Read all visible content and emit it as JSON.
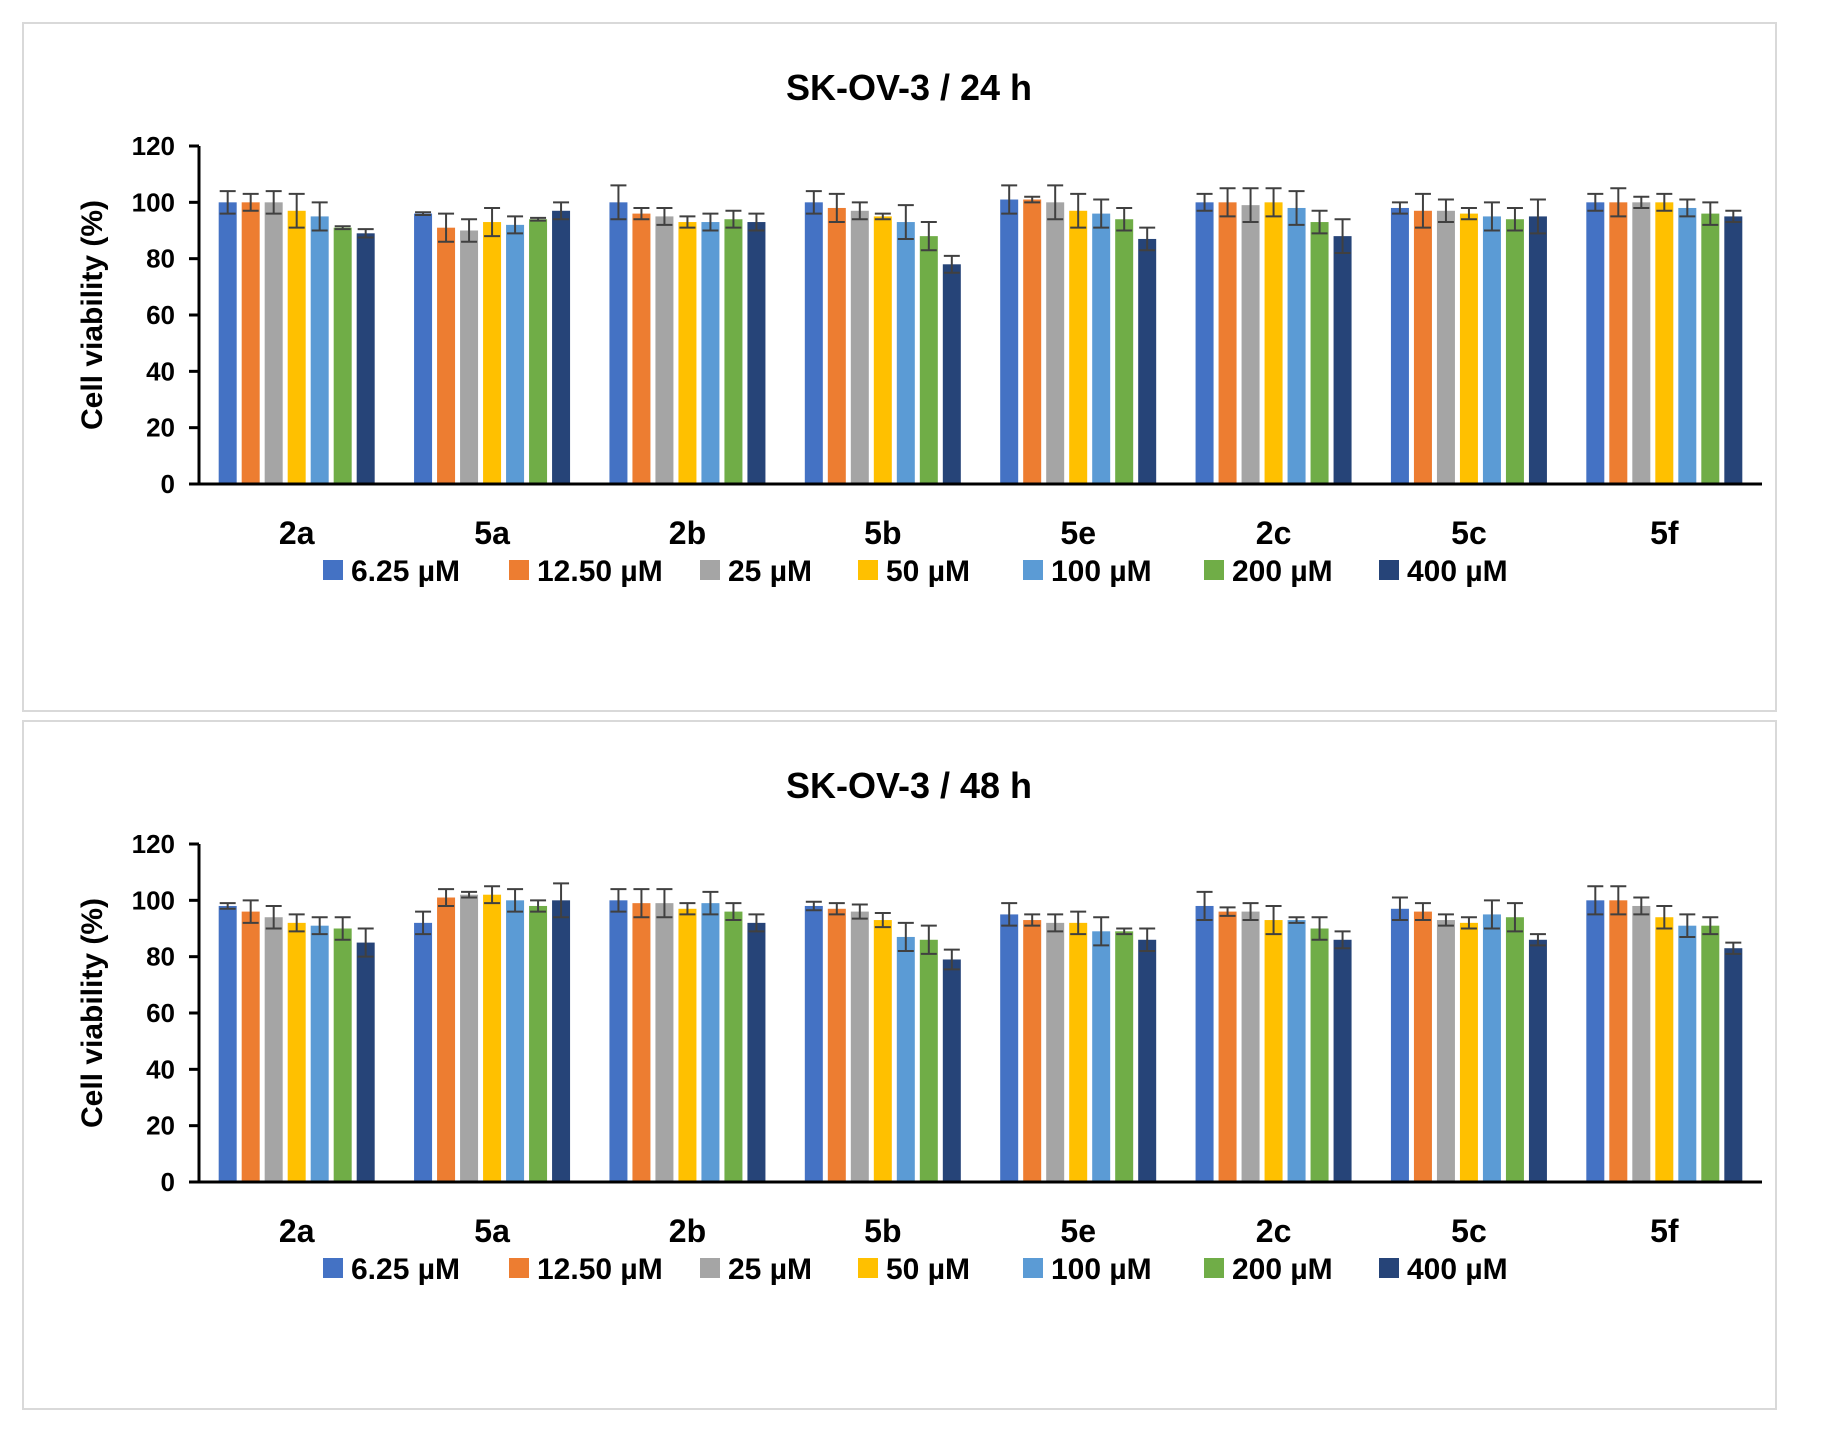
{
  "chart_data": [
    {
      "type": "bar",
      "title": "SK-OV-3 / 24 h",
      "xlabel": "",
      "ylabel": "Cell viability (%)",
      "ylim": [
        0,
        120
      ],
      "yticks": [
        0,
        20,
        40,
        60,
        80,
        100,
        120
      ],
      "legend_position": "bottom",
      "categories": [
        "2a",
        "5a",
        "2b",
        "5b",
        "5e",
        "2c",
        "5c",
        "5f"
      ],
      "series": [
        {
          "name": "6.25 µM",
          "color": "#4472C4",
          "values": [
            100,
            96,
            100,
            100,
            101,
            100,
            98,
            100
          ],
          "errors": [
            4,
            0.5,
            6,
            4,
            5,
            3,
            2,
            3
          ]
        },
        {
          "name": "12.50 µM",
          "color": "#ED7D31",
          "values": [
            100,
            91,
            96,
            98,
            101,
            100,
            97,
            100
          ],
          "errors": [
            3,
            5,
            2,
            5,
            1,
            5,
            6,
            5
          ]
        },
        {
          "name": "25 µM",
          "color": "#A5A5A5",
          "values": [
            100,
            90,
            95,
            97,
            100,
            99,
            97,
            100
          ],
          "errors": [
            4,
            4,
            3,
            3,
            6,
            6,
            4,
            2
          ]
        },
        {
          "name": "50 µM",
          "color": "#FFC000",
          "values": [
            97,
            93,
            93,
            95,
            97,
            100,
            96,
            100
          ],
          "errors": [
            6,
            5,
            2,
            1,
            6,
            5,
            2,
            3
          ]
        },
        {
          "name": "100 µM",
          "color": "#5B9BD5",
          "values": [
            95,
            92,
            93,
            93,
            96,
            98,
            95,
            98
          ],
          "errors": [
            5,
            3,
            3,
            6,
            5,
            6,
            5,
            3
          ]
        },
        {
          "name": "200 µM",
          "color": "#70AD47",
          "values": [
            91,
            94,
            94,
            88,
            94,
            93,
            94,
            96
          ],
          "errors": [
            0.5,
            0.5,
            3,
            5,
            4,
            4,
            4,
            4
          ]
        },
        {
          "name": "400 µM",
          "color": "#264478",
          "values": [
            89,
            97,
            93,
            78,
            87,
            88,
            95,
            95
          ],
          "errors": [
            1.5,
            3,
            3,
            3,
            4,
            6,
            6,
            2
          ]
        }
      ]
    },
    {
      "type": "bar",
      "title": "SK-OV-3 / 48 h",
      "xlabel": "",
      "ylabel": "Cell viability (%)",
      "ylim": [
        0,
        120
      ],
      "yticks": [
        0,
        20,
        40,
        60,
        80,
        100,
        120
      ],
      "legend_position": "bottom",
      "categories": [
        "2a",
        "5a",
        "2b",
        "5b",
        "5e",
        "2c",
        "5c",
        "5f"
      ],
      "series": [
        {
          "name": "6.25 µM",
          "color": "#4472C4",
          "values": [
            98,
            92,
            100,
            98,
            95,
            98,
            97,
            100
          ],
          "errors": [
            1,
            4,
            4,
            1.5,
            4,
            5,
            4,
            5
          ]
        },
        {
          "name": "12.50 µM",
          "color": "#ED7D31",
          "values": [
            96,
            101,
            99,
            97,
            93,
            96,
            96,
            100
          ],
          "errors": [
            4,
            3,
            5,
            2,
            2,
            1.5,
            3,
            5
          ]
        },
        {
          "name": "25 µM",
          "color": "#A5A5A5",
          "values": [
            94,
            102,
            99,
            96,
            92,
            96,
            93,
            98
          ],
          "errors": [
            4,
            1,
            5,
            2.5,
            3,
            3,
            2,
            3
          ]
        },
        {
          "name": "50 µM",
          "color": "#FFC000",
          "values": [
            92,
            102,
            97,
            93,
            92,
            93,
            92,
            94
          ],
          "errors": [
            3,
            3,
            2,
            2.5,
            4,
            5,
            2,
            4
          ]
        },
        {
          "name": "100 µM",
          "color": "#5B9BD5",
          "values": [
            91,
            100,
            99,
            87,
            89,
            93,
            95,
            91
          ],
          "errors": [
            3,
            4,
            4,
            5,
            5,
            1,
            5,
            4
          ]
        },
        {
          "name": "200 µM",
          "color": "#70AD47",
          "values": [
            90,
            98,
            96,
            86,
            89,
            90,
            94,
            91
          ],
          "errors": [
            4,
            2,
            3,
            5,
            1,
            4,
            5,
            3
          ]
        },
        {
          "name": "400 µM",
          "color": "#264478",
          "values": [
            85,
            100,
            92,
            79,
            86,
            86,
            86,
            83
          ],
          "errors": [
            5,
            6,
            3,
            3.5,
            4,
            3,
            2,
            2
          ]
        }
      ]
    }
  ]
}
